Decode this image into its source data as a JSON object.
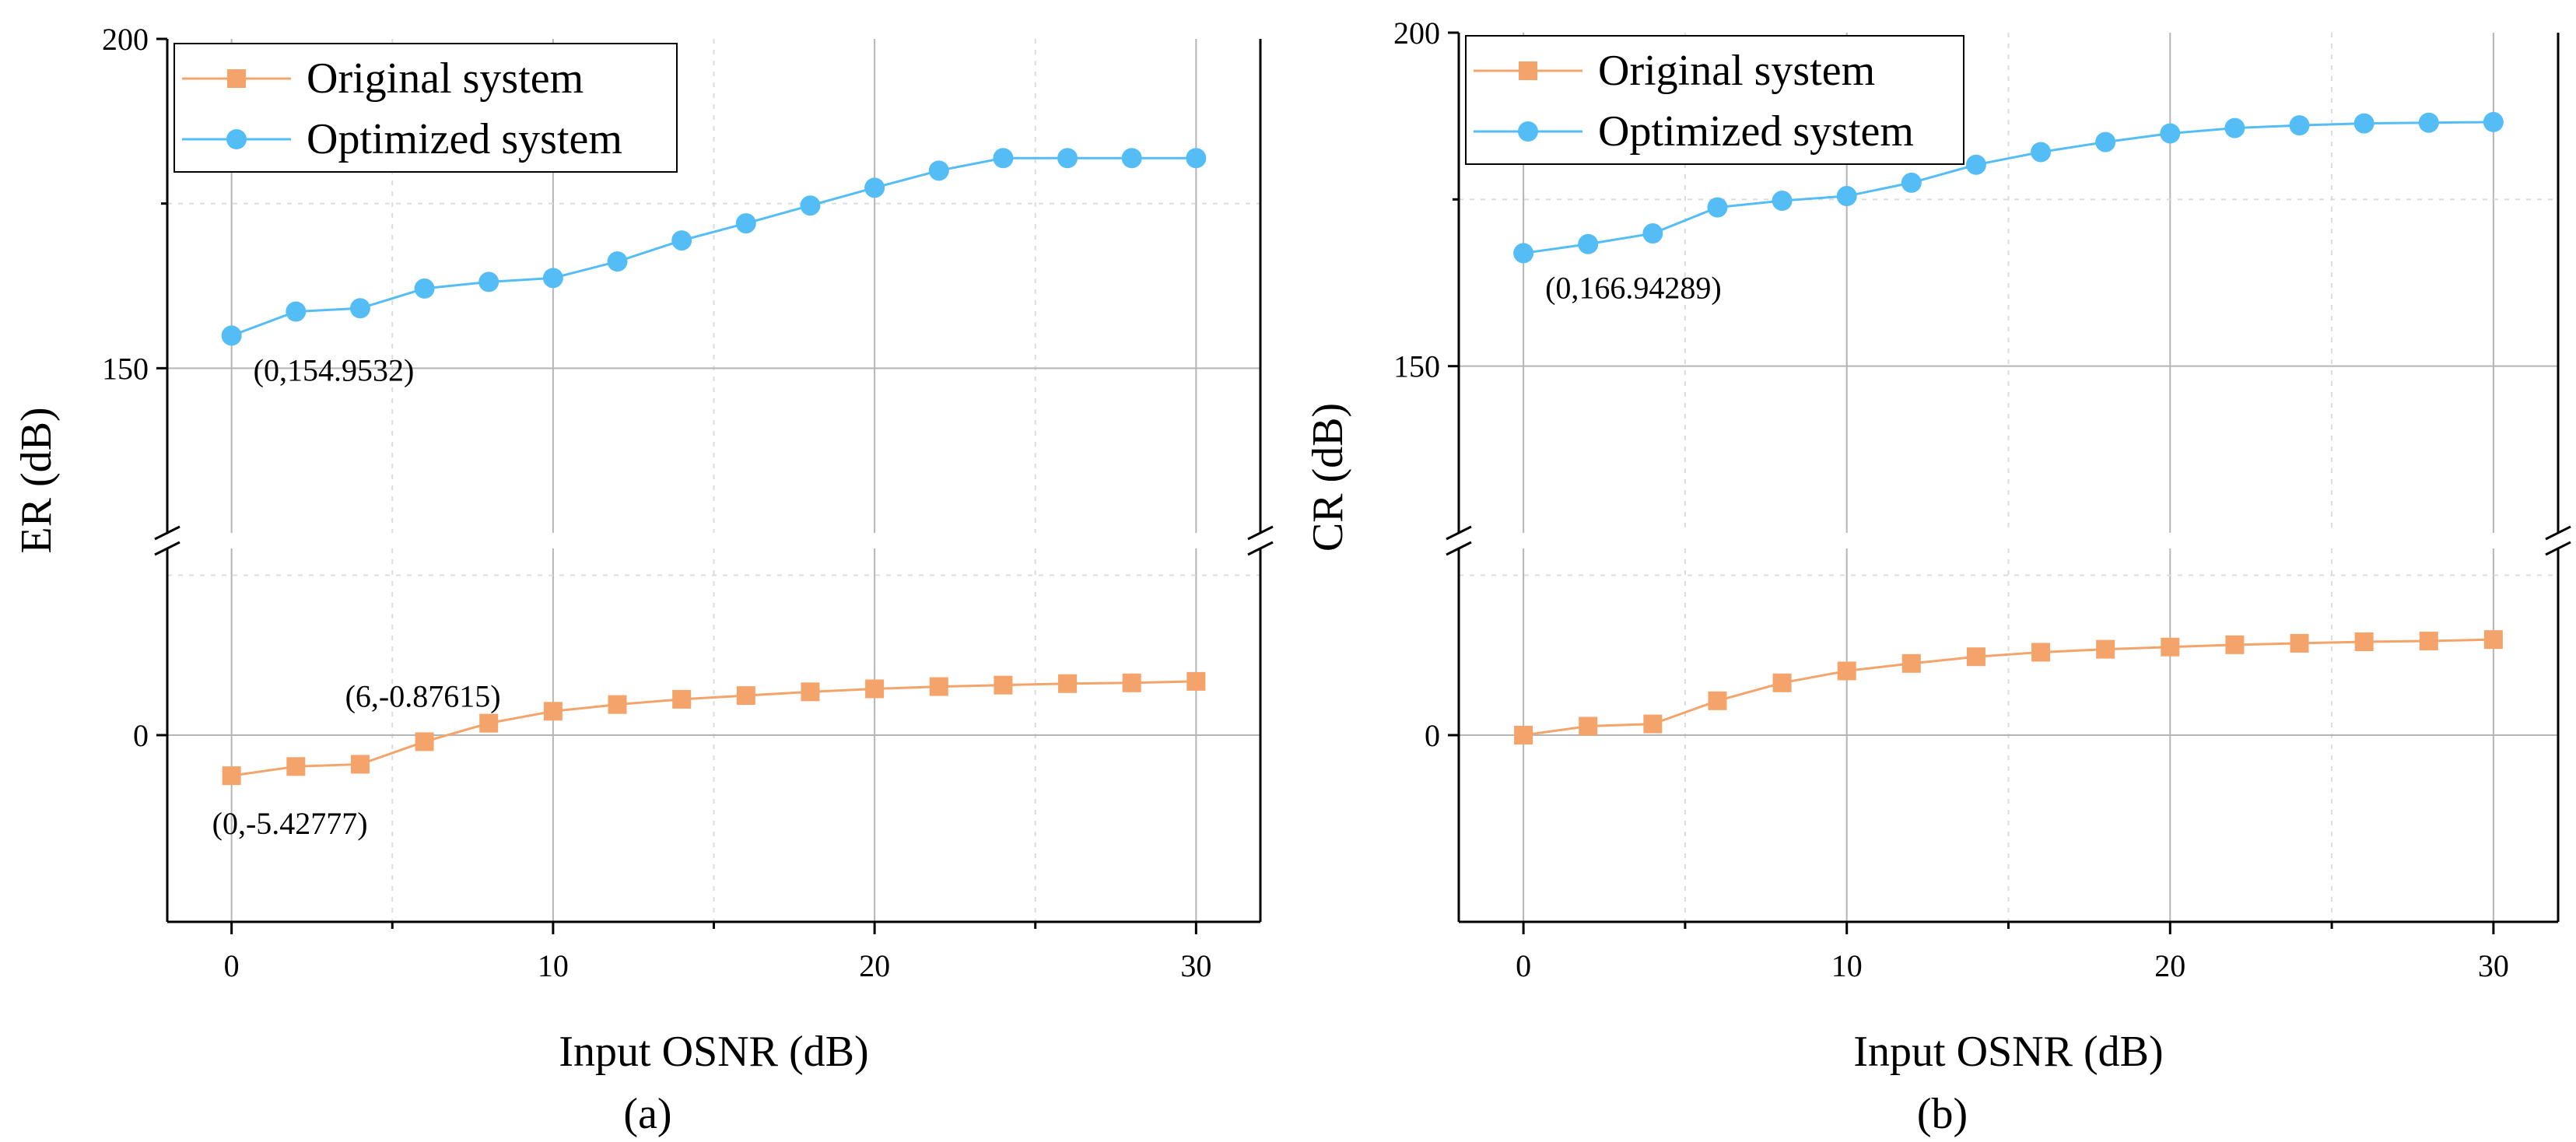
{
  "chart_data": [
    {
      "type": "line",
      "panel_label": "(a)",
      "xlabel": "Input OSNR (dB)",
      "ylabel": "ER (dB)",
      "xlim": [
        -2,
        32
      ],
      "xticks": [
        0,
        10,
        20,
        30
      ],
      "x_minor_ticks": [
        5,
        15,
        25
      ],
      "axis_break": true,
      "upper_ylim": [
        125,
        200
      ],
      "upper_yticks": [
        150,
        200
      ],
      "lower_ylim": [
        -25,
        25
      ],
      "lower_yticks": [
        0
      ],
      "grid": true,
      "legend": "top-left",
      "colors": {
        "Original system": "#F4A46A",
        "Optimized system": "#55BDF5"
      },
      "x": [
        0,
        2,
        4,
        6,
        8,
        10,
        12,
        14,
        16,
        18,
        20,
        22,
        24,
        26,
        28,
        30
      ],
      "series": [
        {
          "name": "Original system",
          "marker": "square",
          "segment": "lower",
          "values": [
            -5.43,
            -4.2,
            -3.9,
            -0.88,
            1.6,
            3.2,
            4.1,
            4.8,
            5.3,
            5.8,
            6.2,
            6.5,
            6.7,
            6.9,
            7.0,
            7.2
          ]
        },
        {
          "name": "Optimized system",
          "marker": "circle",
          "segment": "upper",
          "values": [
            154.95,
            158.6,
            159.1,
            162.1,
            163.1,
            163.7,
            166.2,
            169.4,
            172.0,
            174.7,
            177.4,
            180.0,
            181.9,
            181.9,
            181.9,
            181.9
          ]
        }
      ],
      "annotations": [
        {
          "text": "(0,154.9532)",
          "x": 0,
          "y": 154.95,
          "segment": "upper",
          "anchor": "below-right"
        },
        {
          "text": "(6,-0.87615)",
          "x": 6,
          "y": -0.88,
          "segment": "lower",
          "anchor": "above-left"
        },
        {
          "text": "(0,-5.42777)",
          "x": 0,
          "y": -5.43,
          "segment": "lower",
          "anchor": "below"
        }
      ]
    },
    {
      "type": "line",
      "panel_label": "(b)",
      "xlabel": "Input OSNR (dB)",
      "ylabel": "CR (dB)",
      "xlim": [
        -2,
        32
      ],
      "xticks": [
        0,
        10,
        20,
        30
      ],
      "x_minor_ticks": [
        5,
        15,
        25
      ],
      "axis_break": true,
      "upper_ylim": [
        125,
        200
      ],
      "upper_yticks": [
        150,
        200
      ],
      "lower_ylim": [
        -25,
        25
      ],
      "lower_yticks": [
        0
      ],
      "grid": true,
      "legend": "top-left",
      "colors": {
        "Original system": "#F4A46A",
        "Optimized system": "#55BDF5"
      },
      "x": [
        0,
        2,
        4,
        6,
        8,
        10,
        12,
        14,
        16,
        18,
        20,
        22,
        24,
        26,
        28,
        30
      ],
      "series": [
        {
          "name": "Original system",
          "marker": "square",
          "segment": "lower",
          "values": [
            0.0,
            1.2,
            1.5,
            4.6,
            7.0,
            8.6,
            9.6,
            10.5,
            11.1,
            11.5,
            11.8,
            12.1,
            12.3,
            12.5,
            12.6,
            12.8
          ]
        },
        {
          "name": "Optimized system",
          "marker": "circle",
          "segment": "upper",
          "values": [
            166.94,
            168.3,
            169.9,
            173.8,
            174.8,
            175.5,
            177.5,
            180.2,
            182.1,
            183.6,
            184.9,
            185.7,
            186.1,
            186.4,
            186.5,
            186.6
          ]
        }
      ],
      "annotations": [
        {
          "text": "(0,166.94289)",
          "x": 0,
          "y": 166.94,
          "segment": "upper",
          "anchor": "below-right"
        }
      ]
    }
  ]
}
